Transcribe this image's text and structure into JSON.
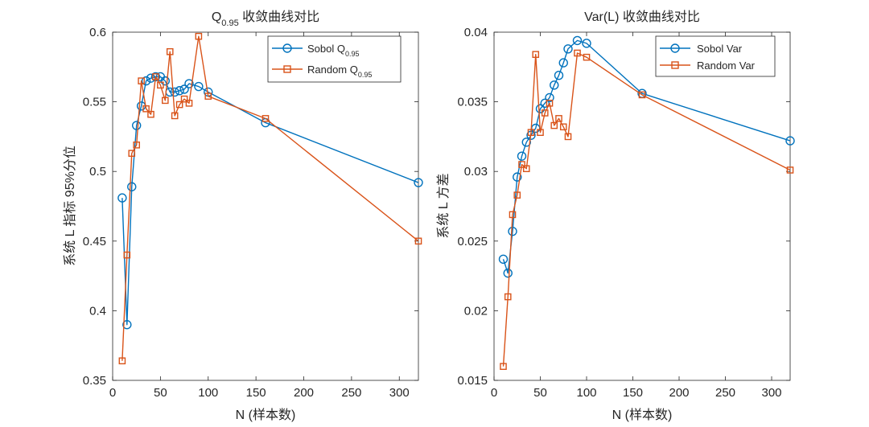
{
  "chart_data": [
    {
      "type": "line",
      "title": "Q0.95 收敛曲线对比",
      "title_main": "Q",
      "title_sub": "0.95",
      "title_rest": " 收敛曲线对比",
      "xlabel": "N (样本数)",
      "ylabel": "系统 L 指标 95%分位",
      "xlim": [
        0,
        320
      ],
      "ylim": [
        0.35,
        0.6
      ],
      "xticks": [
        0,
        50,
        100,
        150,
        200,
        250,
        300
      ],
      "xtick_labels": [
        "0",
        "50",
        "100",
        "150",
        "200",
        "250",
        "300"
      ],
      "yticks": [
        0.35,
        0.4,
        0.45,
        0.5,
        0.55,
        0.6
      ],
      "ytick_labels": [
        "0.35",
        "0.4",
        "0.45",
        "0.5",
        "0.55",
        "0.6"
      ],
      "legend_position": "top-right",
      "series": [
        {
          "name": "Sobol Q0.95",
          "legend_main": "Sobol Q",
          "legend_sub": "0.95",
          "marker": "circle",
          "color": "#0072BD",
          "x": [
            10,
            15,
            20,
            25,
            30,
            35,
            40,
            45,
            50,
            55,
            60,
            65,
            70,
            75,
            80,
            90,
            100,
            160,
            320
          ],
          "y": [
            0.481,
            0.39,
            0.489,
            0.533,
            0.547,
            0.565,
            0.567,
            0.568,
            0.568,
            0.565,
            0.557,
            0.557,
            0.558,
            0.559,
            0.563,
            0.561,
            0.557,
            0.535,
            0.492
          ]
        },
        {
          "name": "Random Q0.95",
          "legend_main": "Random Q",
          "legend_sub": "0.95",
          "marker": "square",
          "color": "#D95319",
          "x": [
            10,
            15,
            20,
            25,
            30,
            35,
            40,
            45,
            50,
            55,
            60,
            65,
            70,
            75,
            80,
            90,
            100,
            160,
            320
          ],
          "y": [
            0.364,
            0.44,
            0.513,
            0.519,
            0.565,
            0.545,
            0.541,
            0.568,
            0.562,
            0.551,
            0.586,
            0.54,
            0.548,
            0.552,
            0.549,
            0.597,
            0.554,
            0.538,
            0.45
          ]
        }
      ]
    },
    {
      "type": "line",
      "title": "Var(L) 收敛曲线对比",
      "xlabel": "N (样本数)",
      "ylabel": "系统 L 方差",
      "xlim": [
        0,
        320
      ],
      "ylim": [
        0.015,
        0.04
      ],
      "xticks": [
        0,
        50,
        100,
        150,
        200,
        250,
        300
      ],
      "xtick_labels": [
        "0",
        "50",
        "100",
        "150",
        "200",
        "250",
        "300"
      ],
      "yticks": [
        0.015,
        0.02,
        0.025,
        0.03,
        0.035,
        0.04
      ],
      "ytick_labels": [
        "0.015",
        "0.02",
        "0.025",
        "0.03",
        "0.035",
        "0.04"
      ],
      "legend_position": "top-right",
      "series": [
        {
          "name": "Sobol Var",
          "marker": "circle",
          "color": "#0072BD",
          "x": [
            10,
            15,
            20,
            25,
            30,
            35,
            40,
            45,
            50,
            55,
            60,
            65,
            70,
            75,
            80,
            90,
            100,
            160,
            320
          ],
          "y": [
            0.0237,
            0.0227,
            0.0257,
            0.0296,
            0.0311,
            0.0321,
            0.0326,
            0.0331,
            0.0345,
            0.0349,
            0.0353,
            0.0362,
            0.0369,
            0.0378,
            0.0388,
            0.0394,
            0.0392,
            0.0356,
            0.0322
          ]
        },
        {
          "name": "Random Var",
          "marker": "square",
          "color": "#D95319",
          "x": [
            10,
            15,
            20,
            25,
            30,
            35,
            40,
            45,
            50,
            55,
            60,
            65,
            70,
            75,
            80,
            90,
            100,
            160,
            320
          ],
          "y": [
            0.016,
            0.021,
            0.0269,
            0.0283,
            0.0305,
            0.0302,
            0.0328,
            0.0384,
            0.0328,
            0.0342,
            0.0349,
            0.0333,
            0.0338,
            0.0332,
            0.0325,
            0.0385,
            0.0382,
            0.0355,
            0.0301
          ]
        }
      ]
    }
  ]
}
